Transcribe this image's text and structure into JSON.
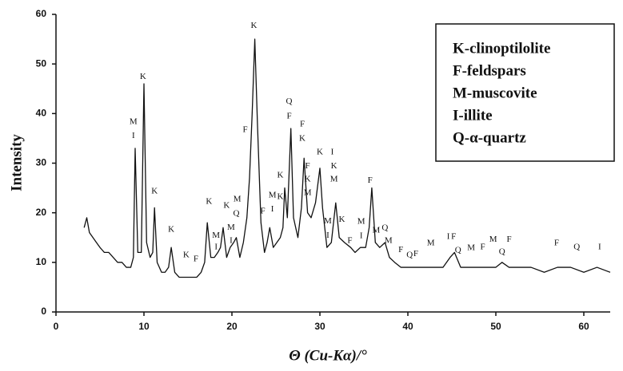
{
  "chart_data": {
    "type": "line",
    "x_label": "Θ (Cu-Kα)/°",
    "y_label": "Intensity",
    "xlim": [
      0,
      63
    ],
    "ylim": [
      0,
      60
    ],
    "xticks": [
      0,
      10,
      20,
      30,
      40,
      50,
      60
    ],
    "yticks": [
      0,
      10,
      20,
      30,
      40,
      50,
      60
    ],
    "grid": false,
    "color": "#111111",
    "x": [
      3.2,
      3.5,
      3.8,
      4.2,
      4.6,
      5.0,
      5.5,
      6.0,
      6.5,
      7.0,
      7.5,
      8.0,
      8.5,
      8.8,
      9.0,
      9.3,
      9.7,
      10.0,
      10.3,
      10.7,
      11.0,
      11.2,
      11.5,
      12.0,
      12.4,
      12.8,
      13.1,
      13.5,
      14.0,
      14.5,
      15.0,
      15.5,
      16.0,
      16.5,
      16.9,
      17.2,
      17.6,
      18.0,
      18.4,
      18.7,
      19.0,
      19.4,
      19.8,
      20.2,
      20.5,
      20.9,
      21.3,
      21.7,
      22.0,
      22.3,
      22.6,
      22.9,
      23.3,
      23.7,
      24.0,
      24.3,
      24.7,
      25.1,
      25.5,
      25.8,
      26.0,
      26.3,
      26.7,
      27.0,
      27.5,
      27.9,
      28.2,
      28.6,
      29.0,
      29.5,
      30.0,
      30.3,
      30.8,
      31.3,
      31.8,
      32.2,
      32.8,
      33.5,
      34.0,
      34.6,
      35.2,
      35.6,
      35.9,
      36.3,
      36.8,
      37.4,
      37.9,
      38.5,
      39.2,
      40.0,
      41.0,
      42.0,
      43.0,
      44.0,
      44.8,
      45.3,
      46.0,
      47.0,
      48.0,
      49.0,
      50.0,
      50.7,
      51.5,
      52.5,
      54.0,
      55.5,
      57.0,
      58.5,
      60.0,
      61.5,
      63.0
    ],
    "values": [
      17,
      19,
      16,
      15,
      14,
      13,
      12,
      12,
      11,
      10,
      10,
      9,
      9,
      11,
      33,
      12,
      12,
      46,
      14,
      11,
      12,
      21,
      10,
      8,
      8,
      9,
      13,
      8,
      7,
      7,
      7,
      7,
      7,
      8,
      10,
      18,
      11,
      11,
      12,
      13,
      17,
      11,
      13,
      14,
      15,
      11,
      14,
      19,
      27,
      40,
      55,
      38,
      18,
      12,
      14,
      17,
      13,
      14,
      15,
      17,
      25,
      19,
      37,
      19,
      15,
      21,
      31,
      20,
      19,
      22,
      29,
      21,
      13,
      14,
      22,
      15,
      14,
      13,
      12,
      13,
      13,
      17,
      25,
      14,
      13,
      14,
      11,
      10,
      9,
      9,
      9,
      9,
      9,
      9,
      11,
      12,
      9,
      9,
      9,
      9,
      9,
      10,
      9,
      9,
      9,
      8,
      9,
      9,
      8,
      9,
      8
    ],
    "legend_entries": [
      "K-clinoptilolite",
      "F-feldspars",
      "M-muscovite",
      "I-illite",
      "Q-α-quartz"
    ],
    "annotations": [
      {
        "label": "M",
        "x": 8.8,
        "y": 38.3
      },
      {
        "label": "I",
        "x": 8.8,
        "y": 35.5
      },
      {
        "label": "K",
        "x": 9.9,
        "y": 47.4
      },
      {
        "label": "K",
        "x": 11.2,
        "y": 24.3
      },
      {
        "label": "K",
        "x": 13.1,
        "y": 16.6
      },
      {
        "label": "K",
        "x": 14.8,
        "y": 11.4
      },
      {
        "label": "F",
        "x": 15.9,
        "y": 10.6
      },
      {
        "label": "K",
        "x": 17.4,
        "y": 22.2
      },
      {
        "label": "M",
        "x": 18.2,
        "y": 15.4
      },
      {
        "label": "I",
        "x": 18.2,
        "y": 13.0
      },
      {
        "label": "K",
        "x": 19.4,
        "y": 21.4
      },
      {
        "label": "M",
        "x": 19.9,
        "y": 17.0
      },
      {
        "label": "I",
        "x": 19.9,
        "y": 14.3
      },
      {
        "label": "Q",
        "x": 20.5,
        "y": 19.8
      },
      {
        "label": "M",
        "x": 20.6,
        "y": 22.7
      },
      {
        "label": "F",
        "x": 21.5,
        "y": 36.7
      },
      {
        "label": "K",
        "x": 22.5,
        "y": 57.7
      },
      {
        "label": "F",
        "x": 23.5,
        "y": 20.3
      },
      {
        "label": "M",
        "x": 24.6,
        "y": 23.5
      },
      {
        "label": "I",
        "x": 24.6,
        "y": 20.7
      },
      {
        "label": "K",
        "x": 25.5,
        "y": 27.5
      },
      {
        "label": "K",
        "x": 25.5,
        "y": 23.2
      },
      {
        "label": "Q",
        "x": 26.5,
        "y": 42.4
      },
      {
        "label": "F",
        "x": 26.5,
        "y": 39.4
      },
      {
        "label": "F",
        "x": 28.0,
        "y": 37.8
      },
      {
        "label": "K",
        "x": 28.0,
        "y": 34.9
      },
      {
        "label": "F",
        "x": 28.6,
        "y": 29.4
      },
      {
        "label": "K",
        "x": 28.6,
        "y": 26.7
      },
      {
        "label": "M",
        "x": 28.6,
        "y": 24.0
      },
      {
        "label": "K",
        "x": 30.0,
        "y": 32.2
      },
      {
        "label": "I",
        "x": 31.4,
        "y": 32.2
      },
      {
        "label": "K",
        "x": 31.6,
        "y": 29.4
      },
      {
        "label": "M",
        "x": 31.6,
        "y": 26.7
      },
      {
        "label": "M",
        "x": 30.9,
        "y": 18.3
      },
      {
        "label": "I",
        "x": 30.9,
        "y": 15.4
      },
      {
        "label": "K",
        "x": 32.5,
        "y": 18.6
      },
      {
        "label": "F",
        "x": 33.4,
        "y": 14.3
      },
      {
        "label": "M",
        "x": 34.7,
        "y": 18.2
      },
      {
        "label": "I",
        "x": 34.7,
        "y": 15.3
      },
      {
        "label": "F",
        "x": 35.7,
        "y": 26.5
      },
      {
        "label": "M",
        "x": 36.4,
        "y": 16.4
      },
      {
        "label": "Q",
        "x": 37.4,
        "y": 16.9
      },
      {
        "label": "M",
        "x": 37.8,
        "y": 14.3
      },
      {
        "label": "F",
        "x": 39.2,
        "y": 12.5
      },
      {
        "label": "Q",
        "x": 40.2,
        "y": 11.4
      },
      {
        "label": "F",
        "x": 40.9,
        "y": 11.7
      },
      {
        "label": "M",
        "x": 42.6,
        "y": 13.8
      },
      {
        "label": "I",
        "x": 44.6,
        "y": 15.1
      },
      {
        "label": "F",
        "x": 45.2,
        "y": 15.1
      },
      {
        "label": "Q",
        "x": 45.7,
        "y": 12.4
      },
      {
        "label": "M",
        "x": 47.2,
        "y": 12.9
      },
      {
        "label": "F",
        "x": 48.5,
        "y": 13.0
      },
      {
        "label": "M",
        "x": 49.7,
        "y": 14.6
      },
      {
        "label": "Q",
        "x": 50.7,
        "y": 12.1
      },
      {
        "label": "F",
        "x": 51.5,
        "y": 14.6
      },
      {
        "label": "F",
        "x": 56.9,
        "y": 13.8
      },
      {
        "label": "Q",
        "x": 59.2,
        "y": 13.0
      },
      {
        "label": "I",
        "x": 61.8,
        "y": 13.0
      }
    ]
  }
}
